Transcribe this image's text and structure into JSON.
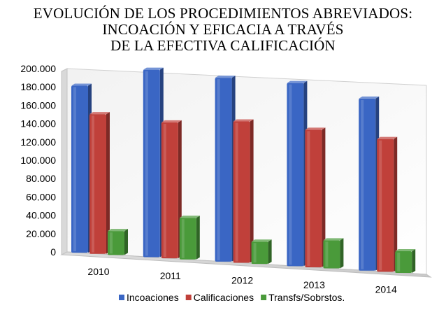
{
  "chart_data": {
    "type": "bar",
    "title": [
      "EVOLUCIÓN DE LOS PROCEDIMIENTOS ABREVIADOS:",
      "INCOACIÓN Y EFICACIA A TRAVÉS",
      "DE LA EFECTIVA CALIFICACIÓN"
    ],
    "categories": [
      "2010",
      "2011",
      "2012",
      "2013",
      "2014"
    ],
    "series": [
      {
        "name": "Incoaciones",
        "color": "#3a66c4",
        "values": [
          182000,
          203000,
          198000,
          196000,
          183000
        ]
      },
      {
        "name": "Calificaciones",
        "color": "#c0403a",
        "values": [
          152000,
          147000,
          152000,
          147000,
          141000
        ]
      },
      {
        "name": "Transfs/Sobrstos.",
        "color": "#4a9a3a",
        "values": [
          26000,
          45000,
          24000,
          30000,
          23000
        ]
      }
    ],
    "y_ticks": [
      "0",
      "20.000",
      "40.000",
      "60.000",
      "80.000",
      "100.000",
      "120.000",
      "140.000",
      "160.000",
      "180.000",
      "200.000"
    ],
    "ylim": [
      0,
      200000
    ],
    "xlabel": "",
    "ylabel": "",
    "legend_position": "bottom",
    "grid": false,
    "style": "3d-perspective"
  }
}
